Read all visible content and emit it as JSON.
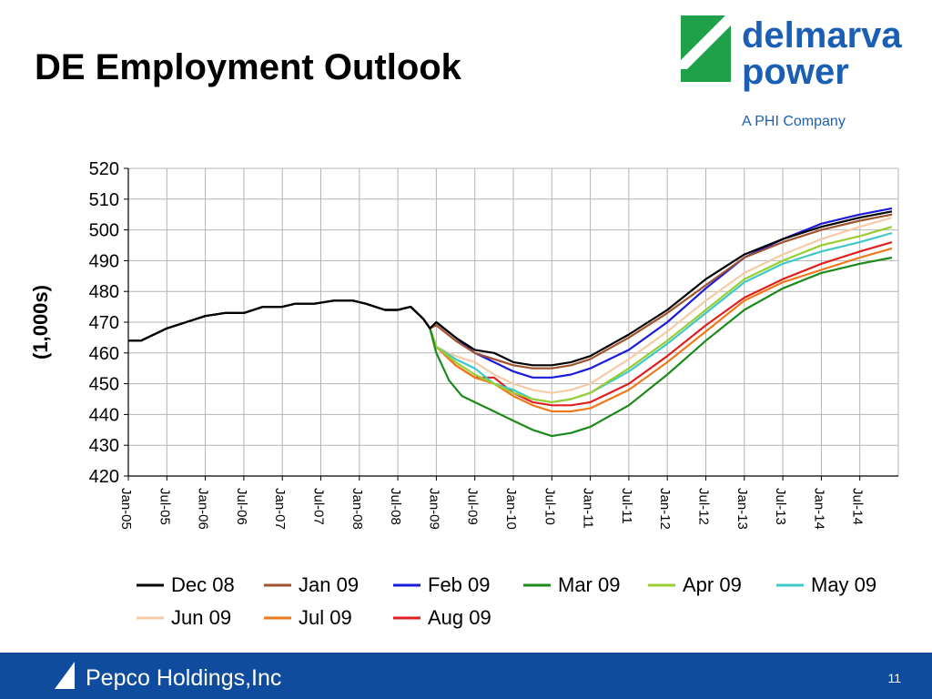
{
  "slide": {
    "title": "DE Employment Outlook",
    "page_number": "11"
  },
  "logo": {
    "line1": "delmarva",
    "line2": "power",
    "tagline": "A PHI Company",
    "color": "#1a5fb4",
    "mark_color": "#1fa14a"
  },
  "footer": {
    "company": "Pepco Holdings,Inc",
    "background": "#0f4c9e"
  },
  "chart_data": {
    "type": "line",
    "title": "",
    "xlabel": "",
    "ylabel": "(1,000s)",
    "ylim": [
      420,
      520
    ],
    "yticks": [
      420,
      430,
      440,
      450,
      460,
      470,
      480,
      490,
      500,
      510,
      520
    ],
    "xrange": [
      "2005-01",
      "2014-12"
    ],
    "xtick_labels": [
      "Jan-05",
      "Jul-05",
      "Jan-06",
      "Jul-06",
      "Jan-07",
      "Jul-07",
      "Jan-08",
      "Jul-08",
      "Jan-09",
      "Jul-09",
      "Jan-10",
      "Jul-10",
      "Jan-11",
      "Jul-11",
      "Jan-12",
      "Jul-12",
      "Jan-13",
      "Jul-13",
      "Jan-14",
      "Jul-14"
    ],
    "grid": true,
    "legend_position": "bottom",
    "history": {
      "x": [
        "2005-01",
        "2005-03",
        "2005-07",
        "2005-10",
        "2006-01",
        "2006-04",
        "2006-07",
        "2006-10",
        "2007-01",
        "2007-03",
        "2007-06",
        "2007-09",
        "2007-12",
        "2008-02",
        "2008-05",
        "2008-07",
        "2008-09",
        "2008-11",
        "2008-12"
      ],
      "y": [
        464,
        464,
        468,
        470,
        472,
        473,
        473,
        475,
        475,
        476,
        476,
        477,
        477,
        476,
        474,
        474,
        475,
        471,
        468
      ]
    },
    "series": [
      {
        "name": "Dec 08",
        "color": "#000000",
        "x": [
          "2009-01",
          "2009-04",
          "2009-07",
          "2009-10",
          "2010-01",
          "2010-04",
          "2010-07",
          "2010-10",
          "2011-01",
          "2011-07",
          "2012-01",
          "2012-07",
          "2013-01",
          "2013-07",
          "2014-01",
          "2014-07",
          "2014-12"
        ],
        "y": [
          470,
          465,
          461,
          460,
          457,
          456,
          456,
          457,
          459,
          466,
          474,
          484,
          492,
          497,
          501,
          504,
          506
        ]
      },
      {
        "name": "Jan 09",
        "color": "#a0522d",
        "x": [
          "2009-01",
          "2009-04",
          "2009-07",
          "2009-10",
          "2010-01",
          "2010-04",
          "2010-07",
          "2010-10",
          "2011-01",
          "2011-07",
          "2012-01",
          "2012-07",
          "2013-01",
          "2013-07",
          "2014-01",
          "2014-07",
          "2014-12"
        ],
        "y": [
          469,
          464,
          460,
          458,
          456,
          455,
          455,
          456,
          458,
          465,
          473,
          482,
          491,
          496,
          500,
          503,
          505
        ]
      },
      {
        "name": "Feb 09",
        "color": "#1a1adb",
        "x": [
          "2009-01",
          "2009-04",
          "2009-07",
          "2009-10",
          "2010-01",
          "2010-04",
          "2010-07",
          "2010-10",
          "2011-01",
          "2011-07",
          "2012-01",
          "2012-07",
          "2013-01",
          "2013-07",
          "2014-01",
          "2014-07",
          "2014-12"
        ],
        "y": [
          470,
          465,
          460,
          457,
          454,
          452,
          452,
          453,
          455,
          461,
          470,
          481,
          491,
          497,
          502,
          505,
          507
        ]
      },
      {
        "name": "Mar 09",
        "color": "#1a8a1a",
        "x": [
          "2009-01",
          "2009-03",
          "2009-05",
          "2009-07",
          "2009-10",
          "2010-01",
          "2010-04",
          "2010-07",
          "2010-10",
          "2011-01",
          "2011-07",
          "2012-01",
          "2012-07",
          "2013-01",
          "2013-07",
          "2014-01",
          "2014-07",
          "2014-12"
        ],
        "y": [
          460,
          451,
          446,
          444,
          441,
          438,
          435,
          433,
          434,
          436,
          443,
          453,
          464,
          474,
          481,
          486,
          489,
          491
        ]
      },
      {
        "name": "Apr 09",
        "color": "#9acd32",
        "x": [
          "2009-01",
          "2009-04",
          "2009-07",
          "2009-10",
          "2010-01",
          "2010-04",
          "2010-07",
          "2010-10",
          "2011-01",
          "2011-07",
          "2012-01",
          "2012-07",
          "2013-01",
          "2013-07",
          "2014-01",
          "2014-07",
          "2014-12"
        ],
        "y": [
          462,
          457,
          453,
          450,
          447,
          445,
          444,
          445,
          447,
          455,
          464,
          474,
          484,
          490,
          495,
          498,
          501
        ]
      },
      {
        "name": "May 09",
        "color": "#40c8c8",
        "x": [
          "2009-01",
          "2009-04",
          "2009-07",
          "2009-10",
          "2010-01",
          "2010-04",
          "2010-07",
          "2010-10",
          "2011-01",
          "2011-07",
          "2012-01",
          "2012-07",
          "2013-01",
          "2013-07",
          "2014-01",
          "2014-07",
          "2014-12"
        ],
        "y": [
          462,
          458,
          455,
          450,
          448,
          445,
          444,
          445,
          447,
          454,
          463,
          473,
          483,
          489,
          493,
          496,
          499
        ]
      },
      {
        "name": "Jun 09",
        "color": "#f5cba7",
        "x": [
          "2009-01",
          "2009-04",
          "2009-07",
          "2009-10",
          "2010-01",
          "2010-04",
          "2010-07",
          "2010-10",
          "2011-01",
          "2011-07",
          "2012-01",
          "2012-07",
          "2013-01",
          "2013-07",
          "2014-01",
          "2014-07",
          "2014-12"
        ],
        "y": [
          462,
          459,
          457,
          453,
          450,
          448,
          447,
          448,
          450,
          458,
          467,
          477,
          486,
          492,
          497,
          501,
          504
        ]
      },
      {
        "name": "Jul 09",
        "color": "#f07818",
        "x": [
          "2009-01",
          "2009-04",
          "2009-07",
          "2009-10",
          "2010-01",
          "2010-04",
          "2010-07",
          "2010-10",
          "2011-01",
          "2011-07",
          "2012-01",
          "2012-07",
          "2013-01",
          "2013-07",
          "2014-01",
          "2014-07",
          "2014-12"
        ],
        "y": [
          462,
          456,
          452,
          450,
          446,
          443,
          441,
          441,
          442,
          448,
          457,
          467,
          477,
          483,
          487,
          491,
          494
        ]
      },
      {
        "name": "Aug 09",
        "color": "#e02020",
        "x": [
          "2009-01",
          "2009-04",
          "2009-07",
          "2009-10",
          "2010-01",
          "2010-04",
          "2010-07",
          "2010-10",
          "2011-01",
          "2011-07",
          "2012-01",
          "2012-07",
          "2013-01",
          "2013-07",
          "2014-01",
          "2014-07",
          "2014-12"
        ],
        "y": [
          462,
          456,
          452,
          452,
          447,
          444,
          443,
          443,
          444,
          450,
          459,
          469,
          478,
          484,
          489,
          493,
          496
        ]
      }
    ]
  }
}
